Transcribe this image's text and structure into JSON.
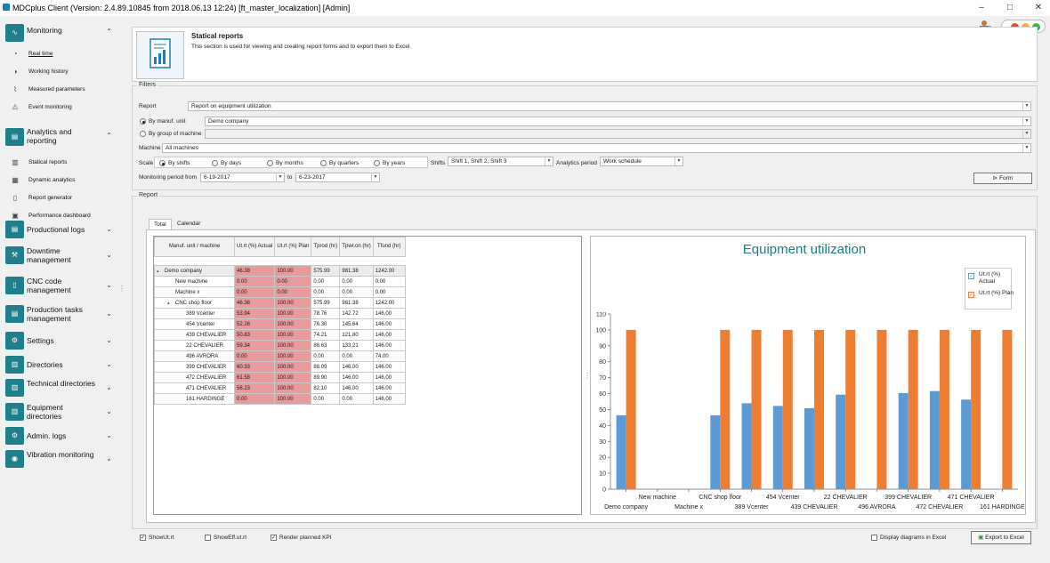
{
  "window": {
    "title": "MDCplus Client (Version: 2.4.89.10845 from 2018.06.13 12:24) [ft_master_localization]  [Admin]",
    "min": "–",
    "max": "□",
    "close": "✕"
  },
  "sidebar": {
    "monitoring": {
      "label": "Monitoring",
      "items": [
        "Real time",
        "Working history",
        "Measured parameters",
        "Event monitoring"
      ]
    },
    "analytics": {
      "label": "Analytics and reporting",
      "items": [
        "Statical reports",
        "Dynamic analytics",
        "Report generator",
        "Performance dashboard"
      ]
    },
    "groups": [
      "Productional logs",
      "Downtime management",
      "CNC code management",
      "Production tasks management",
      "Settings",
      "Directories",
      "Technical directories",
      "Equipment directories",
      "Admin. logs",
      "Vibration monitoring"
    ]
  },
  "header": {
    "title": "Statical reports",
    "desc": "This section is used for viewing and creating report forms and to export them to Excel."
  },
  "filters": {
    "legend": "Filters",
    "report_label": "Report",
    "report_value": "Report on equipment utilization",
    "by_unit_label": "By manuf. unit",
    "by_unit_value": "Demo company",
    "by_group_label": "By group of machine",
    "by_group_value": "",
    "machine_label": "Machine",
    "machine_value": "All machines",
    "scale_label": "Scale",
    "scale_options": [
      "By shifts",
      "By days",
      "By months",
      "By quarters",
      "By years"
    ],
    "shifts_label": "Shifts",
    "shifts_value": "Shift 1, Shift 2, Shift 3",
    "period_label": "Analytics period",
    "period_value": "Work schedule",
    "monitoring_label": "Monitoring period from",
    "from_value": "6-19-2017",
    "to_label": "to",
    "to_value": "6-23-2017",
    "form_button": "Form"
  },
  "report": {
    "legend": "Report",
    "tabs": [
      "Total",
      "Calendar"
    ]
  },
  "table": {
    "headers": [
      "Manuf. unit  / machine",
      "Ut.rt (%) Actual",
      "Ut.rt (%) Plan",
      "Tprod (hr)",
      "Tpwr.on (hr)",
      "Tfund (hr)"
    ],
    "rows": [
      {
        "name": "Demo company",
        "indent": 0,
        "tog": "▴",
        "c": [
          "46.38",
          "100.00",
          "575.99",
          "981.38",
          "1242.00"
        ]
      },
      {
        "name": "New machine",
        "indent": 1,
        "tog": "",
        "c": [
          "0.00",
          "0.00",
          "0.00",
          "0.00",
          "0.00"
        ]
      },
      {
        "name": "Machine x",
        "indent": 1,
        "tog": "",
        "c": [
          "0.00",
          "0.00",
          "0.00",
          "0.00",
          "0.00"
        ]
      },
      {
        "name": "CNC shop floor",
        "indent": 1,
        "tog": "▴",
        "c": [
          "46.38",
          "100.00",
          "575.99",
          "981.38",
          "1242.00"
        ]
      },
      {
        "name": "389 Vcenter",
        "indent": 2,
        "tog": "",
        "c": [
          "53.94",
          "100.00",
          "78.76",
          "142.72",
          "146.00"
        ]
      },
      {
        "name": "454 Vcenter",
        "indent": 2,
        "tog": "",
        "c": [
          "52.26",
          "100.00",
          "76.30",
          "145.64",
          "146.00"
        ]
      },
      {
        "name": "439 CHEVALIER",
        "indent": 2,
        "tog": "",
        "c": [
          "50.83",
          "100.00",
          "74.21",
          "121.80",
          "146.00"
        ]
      },
      {
        "name": "22 CHEVALIER",
        "indent": 2,
        "tog": "",
        "c": [
          "59.34",
          "100.00",
          "86.63",
          "133.21",
          "146.00"
        ]
      },
      {
        "name": "496 AVRORA",
        "indent": 2,
        "tog": "",
        "c": [
          "0.00",
          "100.00",
          "0.00",
          "0.00",
          "74.00"
        ]
      },
      {
        "name": "399 CHEVALIER",
        "indent": 2,
        "tog": "",
        "c": [
          "60.33",
          "100.00",
          "88.09",
          "146.00",
          "146.00"
        ]
      },
      {
        "name": "472 CHEVALIER",
        "indent": 2,
        "tog": "",
        "c": [
          "61.58",
          "100.00",
          "89.90",
          "146.00",
          "146.00"
        ]
      },
      {
        "name": "471 CHEVALIER",
        "indent": 2,
        "tog": "",
        "c": [
          "56.23",
          "100.00",
          "82.10",
          "146.00",
          "146.00"
        ]
      },
      {
        "name": "161 HARDINGE",
        "indent": 2,
        "tog": "",
        "c": [
          "0.00",
          "100.00",
          "0.00",
          "0.00",
          "146.00"
        ]
      }
    ]
  },
  "chart_data": {
    "type": "bar",
    "title": "Equipment utilization",
    "categories": [
      "Demo company",
      "New machine",
      "Machine x",
      "CNC shop floor",
      "389 Vcenter",
      "454 Vcenter",
      "439 CHEVALIER",
      "22 CHEVALIER",
      "496 AVRORA",
      "399 CHEVALIER",
      "472 CHEVALIER",
      "471 CHEVALIER",
      "161 HARDINGE"
    ],
    "series": [
      {
        "name": "Ut.rt (%) Actual",
        "color": "#5b9bd5",
        "values": [
          46.38,
          0,
          0,
          46.38,
          53.94,
          52.26,
          50.83,
          59.34,
          0,
          60.33,
          61.58,
          56.23,
          0
        ]
      },
      {
        "name": "Ut.rt (%) Plan",
        "color": "#ed7d31",
        "values": [
          100,
          0,
          0,
          100,
          100,
          100,
          100,
          100,
          100,
          100,
          100,
          100,
          100
        ]
      }
    ],
    "ylim": [
      0,
      110
    ],
    "yticks": [
      0,
      10,
      20,
      30,
      40,
      50,
      60,
      70,
      80,
      90,
      100,
      110
    ],
    "legend_position": "top-right",
    "grid": false
  },
  "bottom": {
    "show_ut": "ShowUt.rt",
    "show_eff": "ShowEff.ut.rt",
    "render_kpi": "Render planned KPI",
    "display_excel": "Display diagrams in Excel",
    "export": "Export to Excel"
  }
}
